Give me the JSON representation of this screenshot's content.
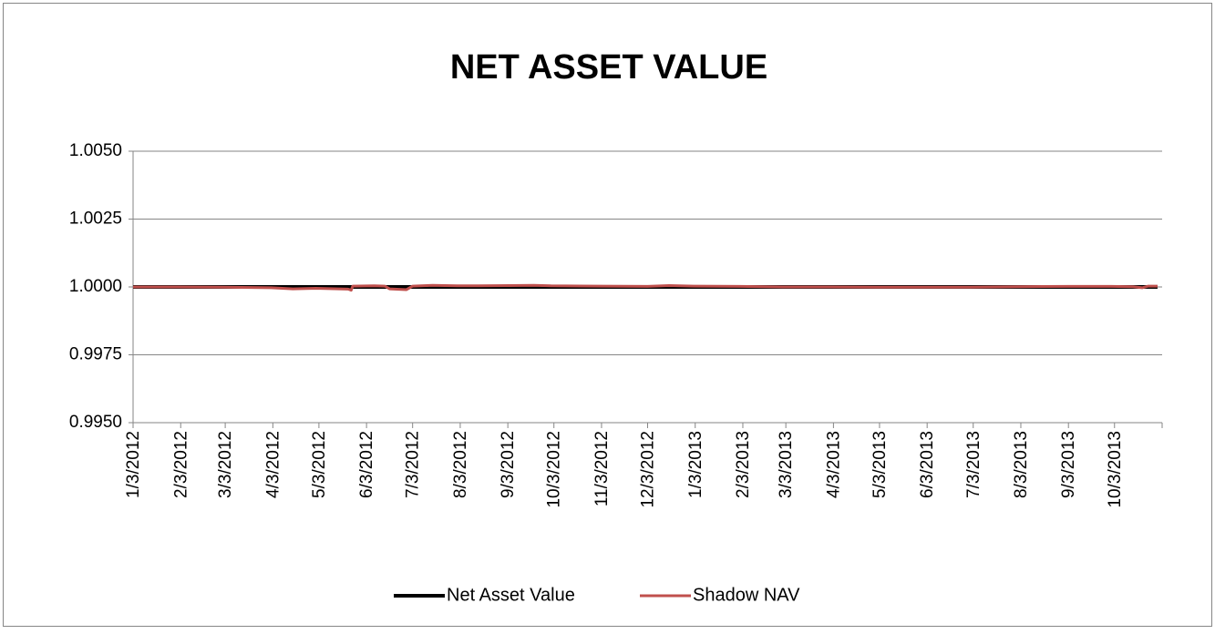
{
  "chart_data": {
    "type": "line",
    "title": "NET ASSET VALUE",
    "x": [
      "2012-01-03",
      "2012-02-01",
      "2012-03-01",
      "2012-04-02",
      "2012-04-16",
      "2012-05-01",
      "2012-05-22",
      "2012-05-24",
      "2012-05-25",
      "2012-06-08",
      "2012-06-15",
      "2012-06-18",
      "2012-06-29",
      "2012-07-03",
      "2012-07-16",
      "2012-08-01",
      "2012-08-15",
      "2012-09-04",
      "2012-09-20",
      "2012-10-01",
      "2012-11-01",
      "2012-12-03",
      "2012-12-17",
      "2013-01-02",
      "2013-02-01",
      "2013-03-01",
      "2013-04-01",
      "2013-05-01",
      "2013-06-03",
      "2013-07-01",
      "2013-08-01",
      "2013-09-03",
      "2013-10-01",
      "2013-10-15",
      "2013-10-21",
      "2013-10-25",
      "2013-10-31"
    ],
    "series": [
      {
        "name": "Net Asset Value",
        "color": "#000000",
        "values": [
          1,
          1,
          1,
          1,
          1,
          1,
          1,
          1,
          1,
          1,
          1,
          1,
          1,
          1,
          1,
          1,
          1,
          1,
          1,
          1,
          1,
          1,
          1,
          1,
          1,
          1,
          1,
          1,
          1,
          1,
          1,
          1,
          1,
          1,
          1,
          1,
          1
        ]
      },
      {
        "name": "Shadow NAV",
        "color": "#c0504d",
        "values": [
          1,
          1,
          0.99999,
          0.99997,
          0.99993,
          0.99995,
          0.99992,
          0.99988,
          1.00003,
          1.00004,
          1.00003,
          0.99993,
          0.9999,
          1.00003,
          1.00006,
          1.00004,
          1.00004,
          1.00005,
          1.00006,
          1.00004,
          1.00003,
          1.00002,
          1.00005,
          1.00003,
          1.00002,
          1,
          1,
          0.99999,
          0.99999,
          0.99999,
          1.00001,
          1.00002,
          1.00002,
          1.00001,
          0.99997,
          1.00003,
          1.00003
        ]
      }
    ],
    "xlim": [
      "2012-01-03",
      "2013-11-03"
    ],
    "xticks": [
      {
        "value": "2012-01-03",
        "label": "1/3/2012"
      },
      {
        "value": "2012-02-03",
        "label": "2/3/2012"
      },
      {
        "value": "2012-03-03",
        "label": "3/3/2012"
      },
      {
        "value": "2012-04-03",
        "label": "4/3/2012"
      },
      {
        "value": "2012-05-03",
        "label": "5/3/2012"
      },
      {
        "value": "2012-06-03",
        "label": "6/3/2012"
      },
      {
        "value": "2012-07-03",
        "label": "7/3/2012"
      },
      {
        "value": "2012-08-03",
        "label": "8/3/2012"
      },
      {
        "value": "2012-09-03",
        "label": "9/3/2012"
      },
      {
        "value": "2012-10-03",
        "label": "10/3/2012"
      },
      {
        "value": "2012-11-03",
        "label": "11/3/2012"
      },
      {
        "value": "2012-12-03",
        "label": "12/3/2012"
      },
      {
        "value": "2013-01-03",
        "label": "1/3/2013"
      },
      {
        "value": "2013-02-03",
        "label": "2/3/2013"
      },
      {
        "value": "2013-03-03",
        "label": "3/3/2013"
      },
      {
        "value": "2013-04-03",
        "label": "4/3/2013"
      },
      {
        "value": "2013-05-03",
        "label": "5/3/2013"
      },
      {
        "value": "2013-06-03",
        "label": "6/3/2013"
      },
      {
        "value": "2013-07-03",
        "label": "7/3/2013"
      },
      {
        "value": "2013-08-03",
        "label": "8/3/2013"
      },
      {
        "value": "2013-09-03",
        "label": "9/3/2013"
      },
      {
        "value": "2013-10-03",
        "label": "10/3/2013"
      }
    ],
    "ylim": [
      0.995,
      1.005
    ],
    "yticks": [
      {
        "value": 0.995,
        "label": "0.9950"
      },
      {
        "value": 0.9975,
        "label": "0.9975"
      },
      {
        "value": 1,
        "label": "1.0000"
      },
      {
        "value": 1.0025,
        "label": "1.0025"
      },
      {
        "value": 1.005,
        "label": "1.0050"
      }
    ],
    "grid": true,
    "legend": "bottom"
  }
}
